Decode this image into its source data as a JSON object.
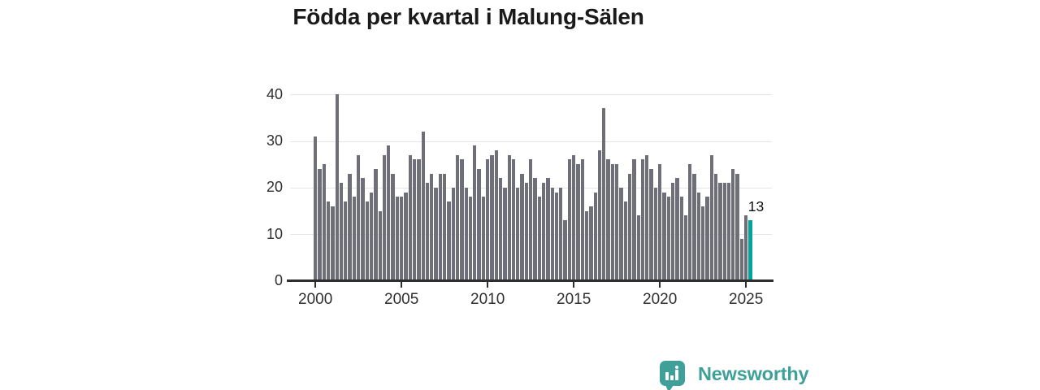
{
  "title": "Födda per kvartal i Malung-Sälen",
  "chart_data": {
    "type": "bar",
    "title": "Födda per kvartal i Malung-Sälen",
    "x_start": "2000-Q1",
    "frequency": "quarterly",
    "values": [
      31,
      24,
      25,
      17,
      16,
      40,
      21,
      17,
      23,
      18,
      27,
      22,
      17,
      19,
      24,
      15,
      27,
      29,
      23,
      18,
      18,
      19,
      27,
      26,
      26,
      32,
      21,
      23,
      20,
      23,
      23,
      17,
      20,
      27,
      26,
      20,
      18,
      29,
      24,
      18,
      26,
      27,
      28,
      22,
      20,
      27,
      26,
      20,
      23,
      21,
      26,
      22,
      18,
      21,
      22,
      20,
      19,
      20,
      13,
      26,
      27,
      25,
      26,
      15,
      16,
      19,
      28,
      37,
      26,
      25,
      25,
      20,
      17,
      23,
      26,
      14,
      26,
      27,
      24,
      20,
      25,
      19,
      18,
      21,
      22,
      18,
      14,
      25,
      23,
      19,
      16,
      18,
      27,
      23,
      21,
      21,
      21,
      24,
      23,
      9,
      14,
      13
    ],
    "highlight": {
      "index": 101,
      "value": 13,
      "label": "13",
      "color": "#00a59b"
    },
    "bar_color": "#6f6f79",
    "grid_color": "#e4e4e4",
    "axis_color": "#2e2e2e",
    "tick_text_color": "#303030",
    "yticks": [
      0,
      10,
      20,
      30,
      40
    ],
    "ylim": [
      0,
      40
    ],
    "xticks": [
      "2000",
      "2005",
      "2010",
      "2015",
      "2020",
      "2025"
    ],
    "grid": true,
    "legend": "none"
  },
  "footer": {
    "brand": "Newsworthy",
    "brand_color": "#3fa099",
    "logo_icon": "bar-chart-speech-bubble"
  }
}
